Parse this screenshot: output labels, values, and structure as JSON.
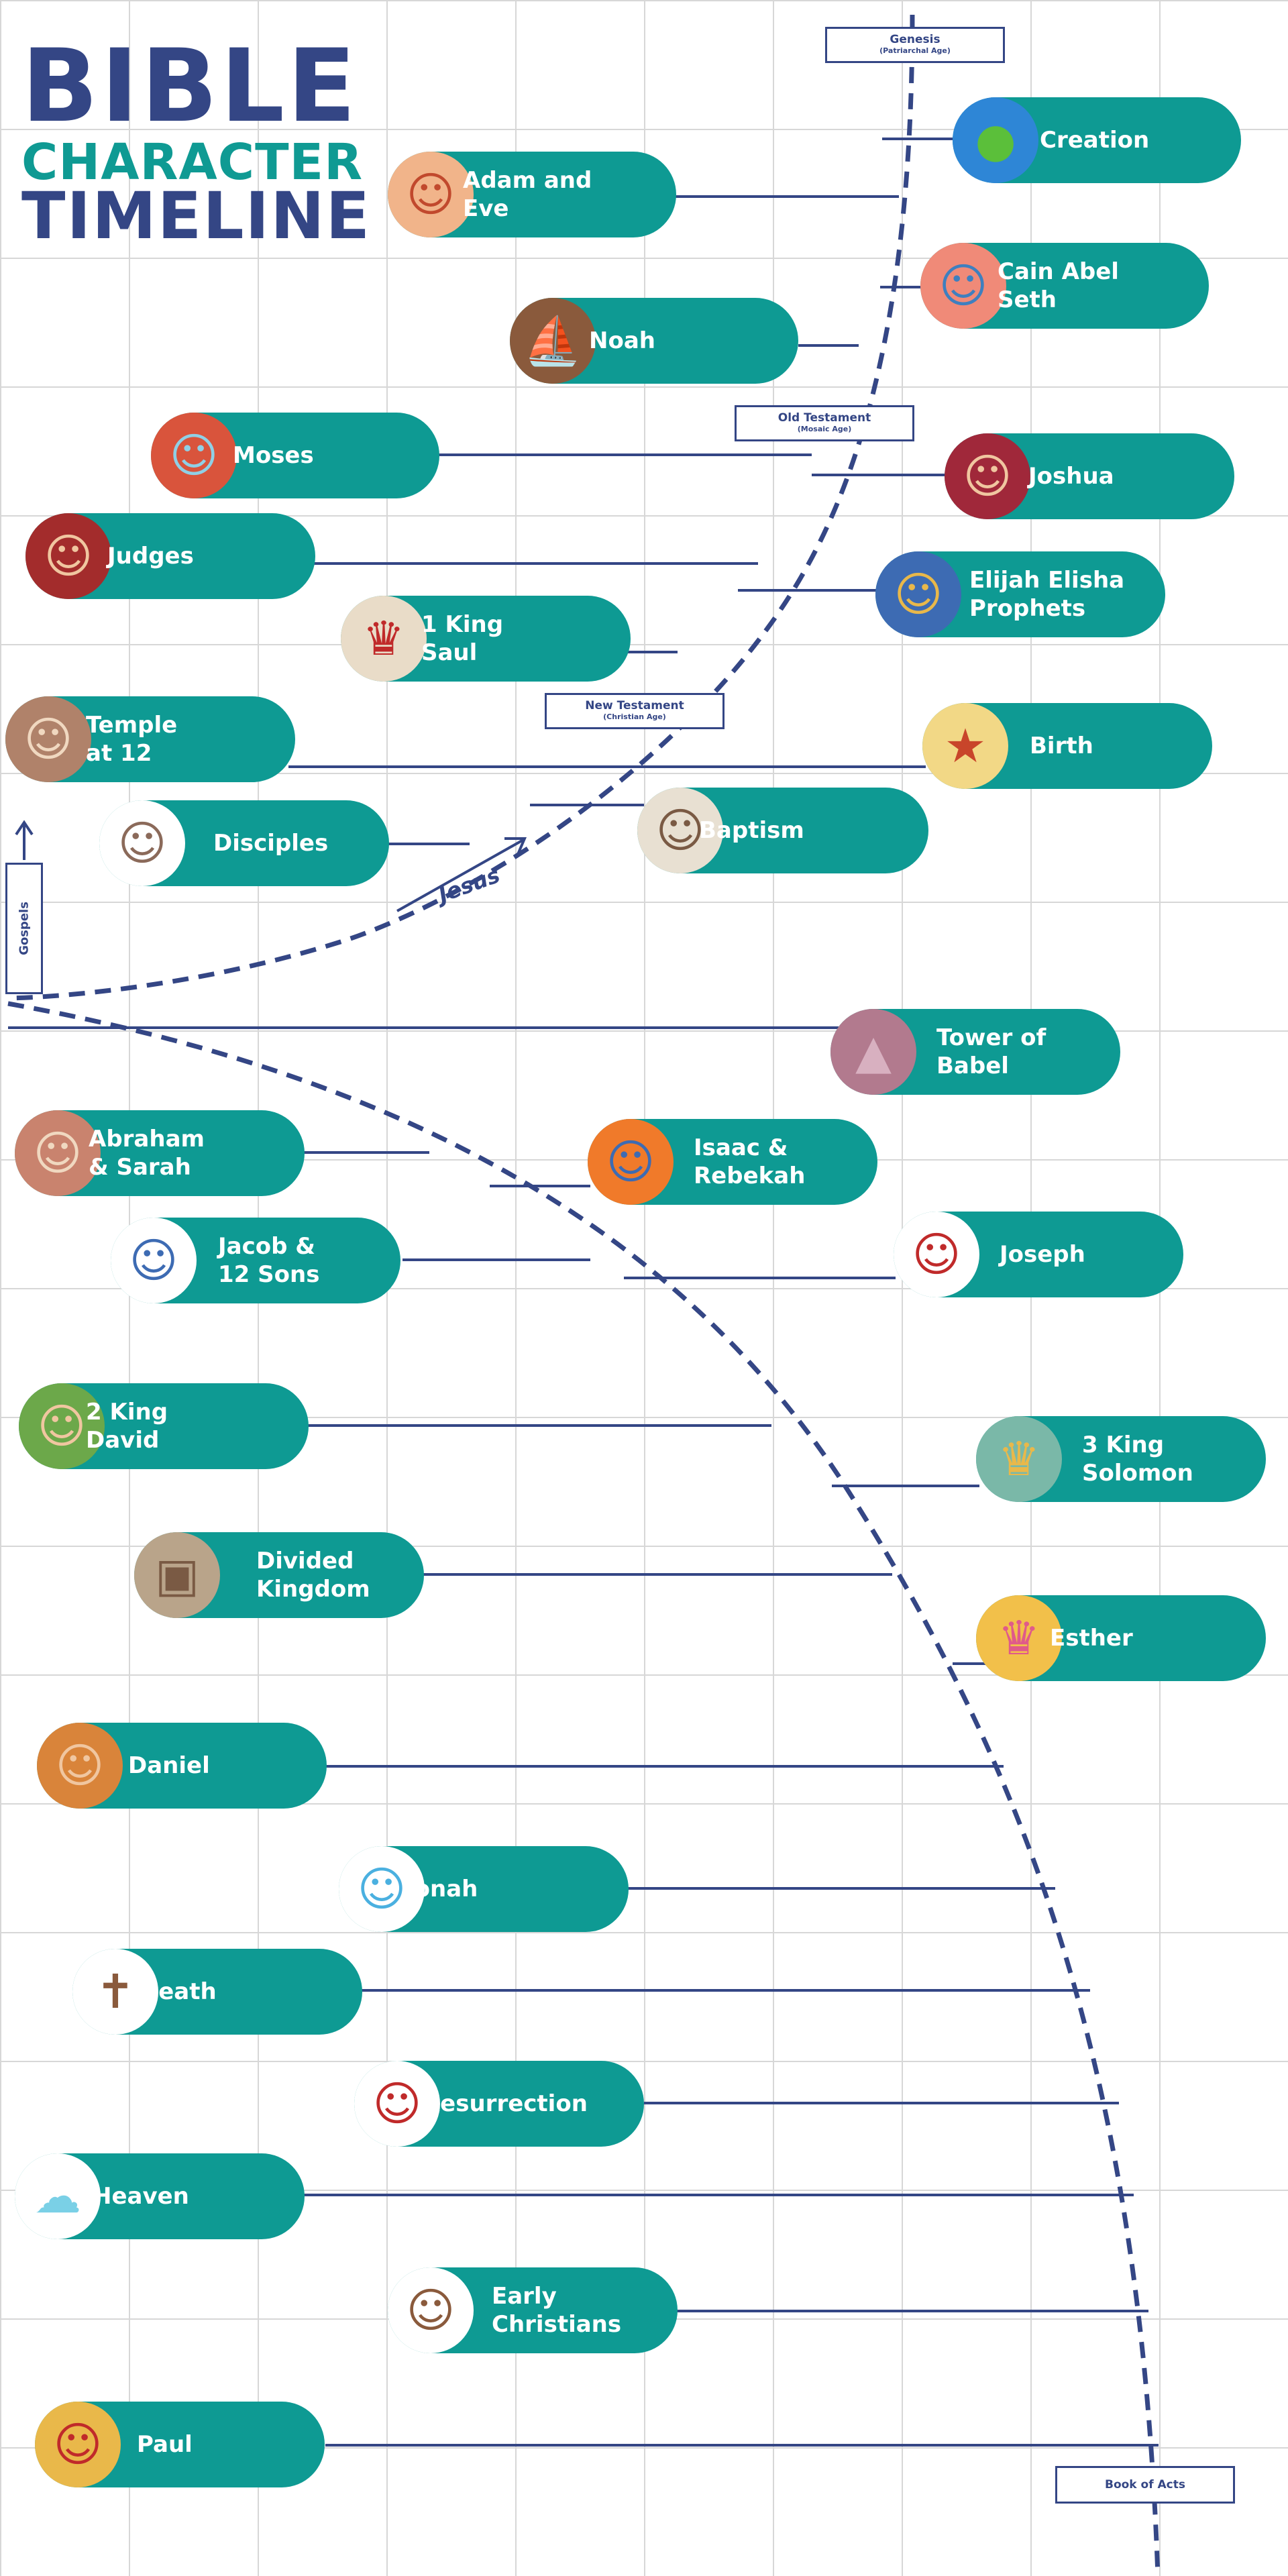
{
  "title": {
    "line1": "BIBLE",
    "line2": "CHARACTER",
    "line3": "TIMELINE"
  },
  "labels": {
    "genesis": "Genesis",
    "genesis_sub": "(Patriarchal Age)",
    "old_testament": "Old Testament",
    "old_testament_sub": "(Mosaic Age)",
    "new_testament": "New Testament",
    "new_testament_sub": "(Christian Age)",
    "book_of_acts": "Book of Acts",
    "gospels": "Gospels",
    "jesus": "Jesus"
  },
  "colors": {
    "navy": "#344685",
    "teal": "#0e9a93",
    "grid": "#d7d7d7"
  },
  "events": [
    {
      "id": "creation",
      "label": "Creation",
      "icon": "globe-icon"
    },
    {
      "id": "adam-and-eve",
      "label": "Adam and\nEve",
      "icon": "adam-eve-icon"
    },
    {
      "id": "cain-abel-seth",
      "label": "Cain Abel\nSeth",
      "icon": "brothers-icon"
    },
    {
      "id": "noah",
      "label": "Noah",
      "icon": "ark-icon"
    },
    {
      "id": "moses",
      "label": "Moses",
      "icon": "moses-icon"
    },
    {
      "id": "joshua",
      "label": "Joshua",
      "icon": "joshua-icon"
    },
    {
      "id": "judges",
      "label": "Judges",
      "icon": "judge-icon"
    },
    {
      "id": "elijah-elisha-prophets",
      "label": "Elijah Elisha\nProphets",
      "icon": "prophets-icon"
    },
    {
      "id": "king-saul",
      "label": "1 King\nSaul",
      "icon": "king-saul-icon"
    },
    {
      "id": "temple-at-12",
      "label": "Temple\nat 12",
      "icon": "temple-icon"
    },
    {
      "id": "birth",
      "label": "Birth",
      "icon": "manger-icon"
    },
    {
      "id": "disciples",
      "label": "Disciples",
      "icon": "disciples-icon"
    },
    {
      "id": "baptism",
      "label": "Baptism",
      "icon": "baptism-icon"
    },
    {
      "id": "tower-of-babel",
      "label": "Tower of\nBabel",
      "icon": "tower-icon"
    },
    {
      "id": "abraham-sarah",
      "label": "Abraham\n& Sarah",
      "icon": "abraham-icon"
    },
    {
      "id": "isaac-rebekah",
      "label": "Isaac &\nRebekah",
      "icon": "couple-icon"
    },
    {
      "id": "jacob-12-sons",
      "label": "Jacob &\n12 Sons",
      "icon": "family-icon"
    },
    {
      "id": "joseph",
      "label": "Joseph",
      "icon": "joseph-icon"
    },
    {
      "id": "king-david",
      "label": "2 King\nDavid",
      "icon": "sling-icon"
    },
    {
      "id": "king-solomon",
      "label": "3 King\nSolomon",
      "icon": "crown-icon"
    },
    {
      "id": "divided-kingdom",
      "label": "Divided\nKingdom",
      "icon": "tablets-icon"
    },
    {
      "id": "esther",
      "label": "Esther",
      "icon": "queen-icon"
    },
    {
      "id": "daniel",
      "label": "Daniel",
      "icon": "lion-icon"
    },
    {
      "id": "jonah",
      "label": "Jonah",
      "icon": "whale-icon"
    },
    {
      "id": "death",
      "label": "Death",
      "icon": "cross-icon"
    },
    {
      "id": "resurrection",
      "label": "Resurrection",
      "icon": "risen-icon"
    },
    {
      "id": "heaven",
      "label": "Heaven",
      "icon": "cloud-icon"
    },
    {
      "id": "early-christians",
      "label": "Early\nChristians",
      "icon": "crowd-icon"
    },
    {
      "id": "paul",
      "label": "Paul",
      "icon": "paul-icon"
    }
  ]
}
